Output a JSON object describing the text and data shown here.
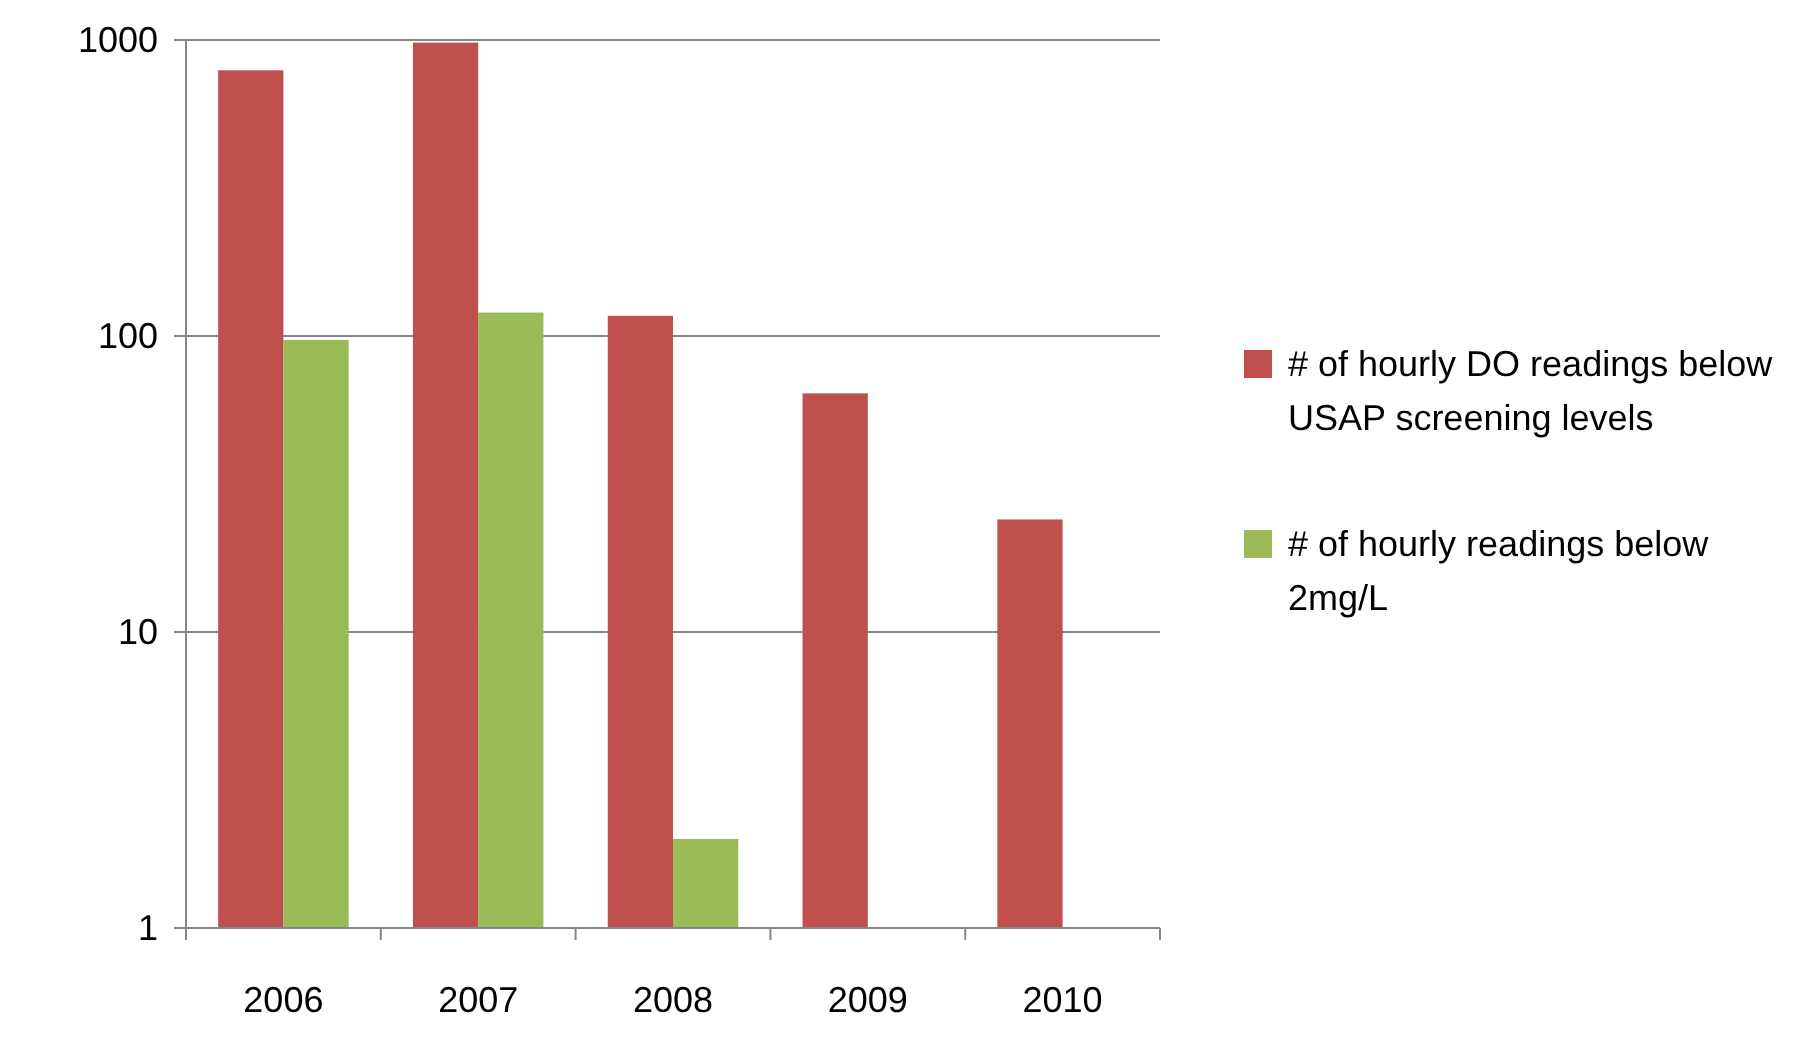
{
  "chart_data": {
    "type": "bar",
    "categories": [
      "2006",
      "2007",
      "2008",
      "2009",
      "2010"
    ],
    "series": [
      {
        "name": "# of hourly DO readings below USAP screening levels",
        "color": "#c0504d",
        "values": [
          790,
          980,
          117,
          64,
          24
        ]
      },
      {
        "name": "# of hourly readings below 2mg/L",
        "color": "#9bbb59",
        "values": [
          97,
          120,
          2,
          null,
          null
        ]
      }
    ],
    "log": true,
    "ylim": [
      1,
      1000
    ],
    "yticks": [
      1,
      10,
      100,
      1000
    ],
    "grid": "y",
    "legend": "right"
  }
}
